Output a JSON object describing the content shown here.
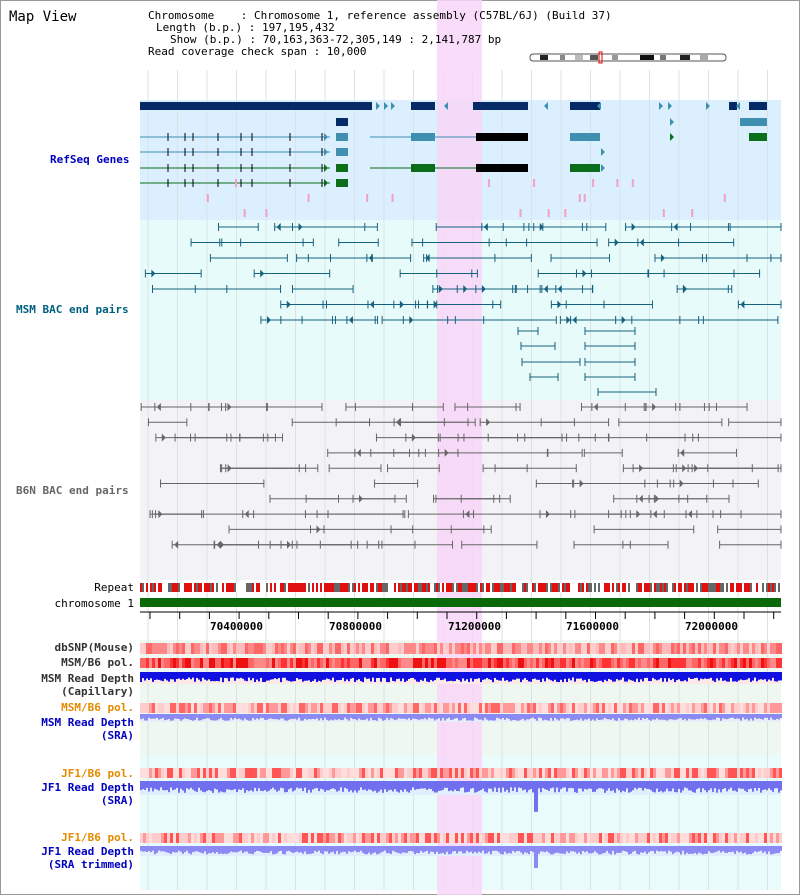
{
  "title": "Map View",
  "info": {
    "chromosome": "Chromosome    : Chromosome 1, reference assembly (C57BL/6J) (Build 37)",
    "length": "Length (b.p.) : 197,195,432",
    "show": "Show (b.p.) : 70,163,363-72,305,149 : 2,141,787 bp",
    "coverage": "Read coverage check span : 10,000"
  },
  "tracks": {
    "refseq": "RefSeq Genes",
    "msm_bac": "MSM BAC end pairs",
    "b6n_bac": "B6N BAC end pairs",
    "repeat": "Repeat",
    "chromosome": "chromosome 1",
    "dbsnp": "dbSNP(Mouse)",
    "msm_b6_pol_1": "MSM/B6 pol.",
    "msm_depth_cap_1": "MSM Read Depth",
    "msm_depth_cap_2": "(Capillary)",
    "msm_b6_pol_2": "MSM/B6 pol.",
    "msm_depth_sra_1": "MSM Read Depth",
    "msm_depth_sra_2": "(SRA)",
    "jf1_b6_pol_1": "JF1/B6 pol.",
    "jf1_depth_sra_1": "JF1 Read Depth",
    "jf1_depth_sra_2": "(SRA)",
    "jf1_b6_pol_2": "JF1/B6 pol.",
    "jf1_depth_trim_1": "JF1 Read Depth",
    "jf1_depth_trim_2": "(SRA trimmed)"
  },
  "axis": {
    "ticks": [
      "70400000",
      "70800000",
      "71200000",
      "71600000",
      "72000000"
    ]
  },
  "colors": {
    "refseq_bg": "#dcefff",
    "bac_bg": "#e8fbfb",
    "b6n_bg": "#f2f2f7",
    "highlight": "#f8d6f8",
    "gene_navy": "#062a66",
    "gene_teal": "#3e8fb0",
    "gene_green": "#0a6e1a",
    "msm_line": "#16617f",
    "b6n_line": "#666666",
    "chrom_green": "#0a6a0a",
    "label_blue": "#0000c0",
    "label_orange": "#e58a00",
    "label_teal": "#005f7f"
  }
}
